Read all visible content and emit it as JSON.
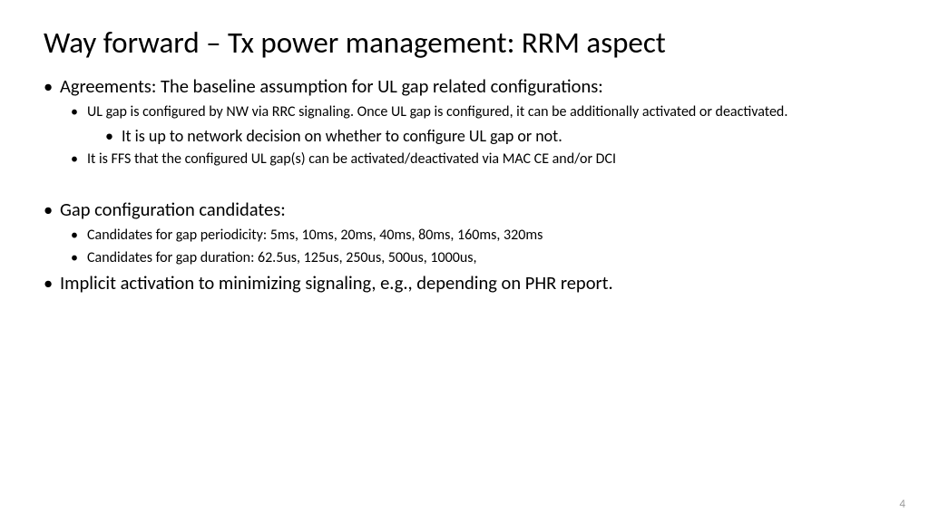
{
  "title": "Way forward – Tx power management: RRM aspect",
  "bullets": {
    "b1": "Agreements: The baseline assumption for UL gap related configurations:",
    "b1_1": "UL gap is configured by NW via RRC signaling. Once UL gap is configured, it can be additionally activated or deactivated.",
    "b1_1_1": "It is up to network decision on whether to configure UL gap or not.",
    "b1_2": "It is FFS that the configured UL gap(s) can be activated/deactivated via MAC CE and/or DCI",
    "b2": "Gap configuration candidates:",
    "b2_1": "Candidates for gap periodicity: 5ms, 10ms, 20ms, 40ms, 80ms, 160ms, 320ms",
    "b2_2": "Candidates for gap duration: 62.5us, 125us, 250us, 500us, 1000us,",
    "b3": "Implicit activation to minimizing signaling, e.g., depending on PHR report."
  },
  "pageNumber": "4",
  "colors": {
    "background": "#ffffff",
    "text": "#000000",
    "pageNum": "#999999"
  },
  "typography": {
    "title_fontsize": 33,
    "level1_fontsize": 20.5,
    "level2_fontsize": 16,
    "level3_fontsize": 18,
    "font_family": "Calibri"
  }
}
